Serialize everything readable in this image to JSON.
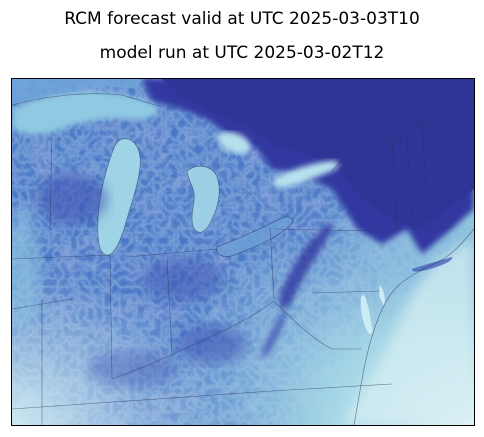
{
  "figure": {
    "title_line_1": "RCM forecast valid at UTC 2025-03-03T10",
    "title_line_2": "model run at UTC 2025-03-02T12"
  },
  "map": {
    "colormap": {
      "low": "#3339a0",
      "mid": "#5a8fd0",
      "high": "#d8f0f4"
    },
    "border_color": "#2a2f5a"
  }
}
